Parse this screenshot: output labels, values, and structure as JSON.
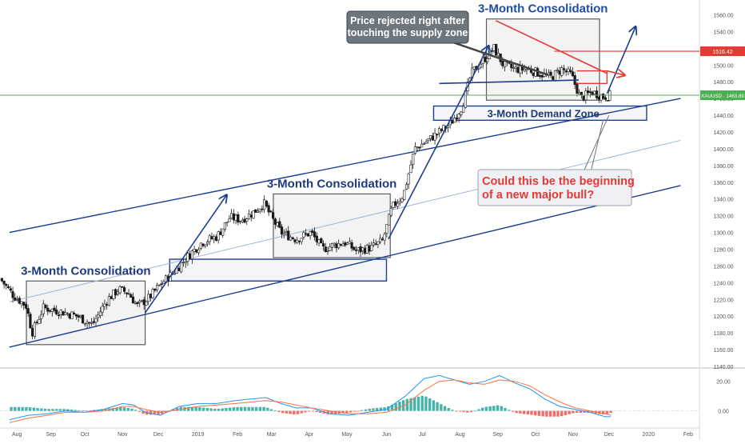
{
  "chart_data": {
    "type": "candlestick",
    "symbol": "XAUUSD",
    "last_price": "1463.89",
    "price_axis": {
      "ylim": [
        1140,
        1570
      ],
      "ticks": [
        "1560.00",
        "1540.00",
        "1520.00",
        "1500.00",
        "1480.00",
        "1460.00",
        "1440.00",
        "1420.00",
        "1400.00",
        "1380.00",
        "1360.00",
        "1340.00",
        "1320.00",
        "1300.00",
        "1280.00",
        "1260.00",
        "1240.00",
        "1220.00",
        "1200.00",
        "1180.00",
        "1160.00",
        "1140.00"
      ]
    },
    "time_axis": {
      "labels": [
        {
          "t": 0.2,
          "label": "Aug"
        },
        {
          "t": 1.1,
          "label": "Sep"
        },
        {
          "t": 2.0,
          "label": "Oct"
        },
        {
          "t": 3.0,
          "label": "Nov"
        },
        {
          "t": 3.95,
          "label": "Dec"
        },
        {
          "t": 5.0,
          "label": "2019"
        },
        {
          "t": 6.05,
          "label": "Feb"
        },
        {
          "t": 6.95,
          "label": "Mar"
        },
        {
          "t": 7.95,
          "label": "Apr"
        },
        {
          "t": 8.95,
          "label": "May"
        },
        {
          "t": 10.0,
          "label": "Jun"
        },
        {
          "t": 10.95,
          "label": "Jul"
        },
        {
          "t": 11.95,
          "label": "Aug"
        },
        {
          "t": 12.95,
          "label": "Sep"
        },
        {
          "t": 13.95,
          "label": "Oct"
        },
        {
          "t": 14.95,
          "label": "Nov"
        },
        {
          "t": 15.9,
          "label": "Dec"
        },
        {
          "t": 16.95,
          "label": "2020"
        },
        {
          "t": 18.0,
          "label": "Feb"
        }
      ],
      "tlim": [
        -0.25,
        18.3
      ]
    },
    "price_path": [
      [
        -0.25,
        1245
      ],
      [
        0.1,
        1225
      ],
      [
        0.45,
        1212
      ],
      [
        0.6,
        1180
      ],
      [
        0.9,
        1210
      ],
      [
        1.4,
        1205
      ],
      [
        1.8,
        1200
      ],
      [
        2.2,
        1190
      ],
      [
        2.6,
        1220
      ],
      [
        2.9,
        1232
      ],
      [
        3.15,
        1228
      ],
      [
        3.4,
        1212
      ],
      [
        3.7,
        1222
      ],
      [
        4.05,
        1240
      ],
      [
        4.35,
        1252
      ],
      [
        4.7,
        1270
      ],
      [
        5.1,
        1288
      ],
      [
        5.5,
        1295
      ],
      [
        5.85,
        1318
      ],
      [
        6.15,
        1315
      ],
      [
        6.5,
        1325
      ],
      [
        6.75,
        1335
      ],
      [
        6.95,
        1318
      ],
      [
        7.2,
        1300
      ],
      [
        7.6,
        1292
      ],
      [
        8.0,
        1300
      ],
      [
        8.3,
        1280
      ],
      [
        8.6,
        1285
      ],
      [
        8.9,
        1288
      ],
      [
        9.2,
        1278
      ],
      [
        9.6,
        1282
      ],
      [
        9.9,
        1290
      ],
      [
        10.15,
        1330
      ],
      [
        10.45,
        1345
      ],
      [
        10.75,
        1400
      ],
      [
        11.1,
        1410
      ],
      [
        11.4,
        1420
      ],
      [
        11.7,
        1430
      ],
      [
        12.0,
        1450
      ],
      [
        12.25,
        1490
      ],
      [
        12.55,
        1505
      ],
      [
        12.85,
        1520
      ],
      [
        13.1,
        1500
      ],
      [
        13.4,
        1495
      ],
      [
        13.75,
        1495
      ],
      [
        14.05,
        1490
      ],
      [
        14.35,
        1485
      ],
      [
        14.65,
        1495
      ],
      [
        14.9,
        1488
      ],
      [
        15.15,
        1460
      ],
      [
        15.45,
        1468
      ],
      [
        15.75,
        1462
      ],
      [
        15.95,
        1464
      ]
    ],
    "resistance_level": 1516.42,
    "resistance_label": "1516.42",
    "current_level": 1463.89,
    "current_label": "XAUUSD · 1463.89",
    "channel": {
      "upper": [
        [
          0.0,
          1300
        ],
        [
          17.8,
          1460
        ]
      ],
      "lower": [
        [
          0.0,
          1163
        ],
        [
          17.8,
          1356
        ]
      ],
      "middle": [
        [
          0.0,
          1217
        ],
        [
          17.8,
          1410
        ]
      ]
    },
    "consolidation_boxes": [
      {
        "label": "3-Month Consolidation",
        "t0": 0.45,
        "t1": 3.6,
        "p_lo": 1166,
        "p_hi": 1242
      },
      {
        "label": "3-Month Consolidation",
        "t0": 7.0,
        "t1": 10.1,
        "p_lo": 1270,
        "p_hi": 1346
      },
      {
        "label": "3-Month Consolidation",
        "t0": 12.65,
        "t1": 15.65,
        "p_lo": 1458,
        "p_hi": 1555
      }
    ],
    "demand_zones": [
      {
        "label": "",
        "t0": 4.25,
        "t1": 10.0,
        "p_lo": 1242,
        "p_hi": 1268
      },
      {
        "label": "3-Month Demand Zone",
        "t0": 11.25,
        "t1": 16.9,
        "p_lo": 1434,
        "p_hi": 1451
      }
    ],
    "annotations": [
      {
        "text_lines": [
          "Price rejected right after",
          "touching the supply zone"
        ],
        "style": "dark"
      },
      {
        "text_lines": [
          "Could this be the beginning",
          "of a new major bull?"
        ],
        "style": "red"
      }
    ],
    "oscillator": {
      "ylim": [
        -10,
        28
      ],
      "ticks": [
        "20.00",
        "0.00"
      ],
      "macd": [
        [
          0.0,
          -6
        ],
        [
          0.5,
          -3
        ],
        [
          1.0,
          -2
        ],
        [
          1.5,
          0
        ],
        [
          2.0,
          -1
        ],
        [
          2.5,
          1
        ],
        [
          3.0,
          5
        ],
        [
          3.3,
          4
        ],
        [
          3.6,
          -1
        ],
        [
          4.0,
          -3
        ],
        [
          4.5,
          3
        ],
        [
          5.0,
          5
        ],
        [
          5.5,
          5
        ],
        [
          6.0,
          7
        ],
        [
          6.4,
          8
        ],
        [
          6.8,
          9
        ],
        [
          7.2,
          5
        ],
        [
          7.6,
          2
        ],
        [
          8.0,
          2
        ],
        [
          8.5,
          -2
        ],
        [
          9.0,
          -3
        ],
        [
          9.5,
          -1
        ],
        [
          10.0,
          1
        ],
        [
          10.5,
          10
        ],
        [
          11.0,
          22
        ],
        [
          11.4,
          24
        ],
        [
          11.8,
          21
        ],
        [
          12.2,
          18
        ],
        [
          12.6,
          20
        ],
        [
          13.0,
          24
        ],
        [
          13.4,
          19
        ],
        [
          13.8,
          15
        ],
        [
          14.2,
          8
        ],
        [
          14.6,
          3
        ],
        [
          15.0,
          1
        ],
        [
          15.4,
          -1
        ],
        [
          15.8,
          -4
        ],
        [
          15.95,
          -4
        ]
      ],
      "signal": [
        [
          0.0,
          -8
        ],
        [
          0.5,
          -5
        ],
        [
          1.0,
          -3
        ],
        [
          1.5,
          -1
        ],
        [
          2.0,
          -1
        ],
        [
          2.5,
          0
        ],
        [
          3.0,
          3
        ],
        [
          3.3,
          3
        ],
        [
          3.6,
          1
        ],
        [
          4.0,
          -1
        ],
        [
          4.5,
          1
        ],
        [
          5.0,
          3
        ],
        [
          5.5,
          4
        ],
        [
          6.0,
          5
        ],
        [
          6.4,
          6
        ],
        [
          6.8,
          7
        ],
        [
          7.2,
          6
        ],
        [
          7.6,
          4
        ],
        [
          8.0,
          2
        ],
        [
          8.5,
          0
        ],
        [
          9.0,
          -2
        ],
        [
          9.5,
          -2
        ],
        [
          10.0,
          -1
        ],
        [
          10.5,
          4
        ],
        [
          11.0,
          14
        ],
        [
          11.4,
          20
        ],
        [
          11.8,
          21
        ],
        [
          12.2,
          19
        ],
        [
          12.6,
          18
        ],
        [
          13.0,
          21
        ],
        [
          13.4,
          20
        ],
        [
          13.8,
          17
        ],
        [
          14.2,
          11
        ],
        [
          14.6,
          6
        ],
        [
          15.0,
          2
        ],
        [
          15.4,
          0
        ],
        [
          15.8,
          -2
        ],
        [
          15.95,
          -3
        ]
      ]
    }
  },
  "colors": {
    "bull": "#26a69a",
    "bear": "#ef5350",
    "candle": "#1a1a1a",
    "navy": "#1b3f8f",
    "title_blue": "#1e4da1",
    "resistance": "#e53935",
    "current_line": "#4caf50",
    "macd": "#2196f3",
    "signal": "#ff7043",
    "note_dark_bg": "#6d757d",
    "note_red_text": "#e53935"
  }
}
